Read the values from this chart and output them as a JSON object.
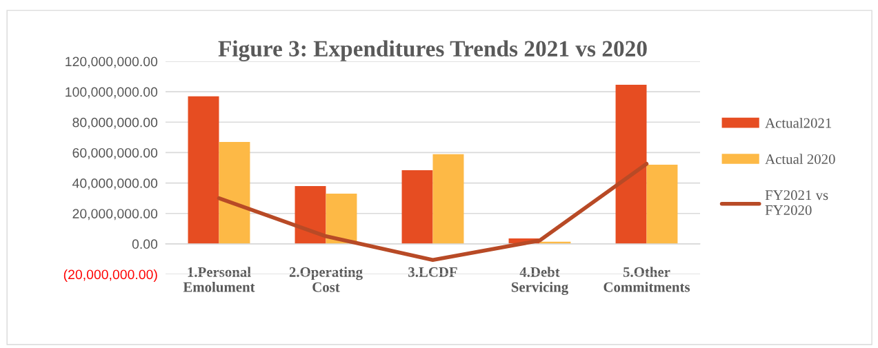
{
  "chart_data": {
    "type": "bar",
    "title": "Figure 3: Expenditures Trends 2021 vs 2020",
    "categories": [
      "1.Personal\nEmolument",
      "2.Operating\nCost",
      "3.LCDF",
      "4.Debt\nServicing",
      "5.Other\nCommitments"
    ],
    "series": [
      {
        "name": "Actual2021",
        "color": "#e64d22",
        "values": [
          97000000,
          38000000,
          48400000,
          3600000,
          104600000
        ]
      },
      {
        "name": "Actual 2020",
        "color": "#fdb946",
        "values": [
          67000000,
          33000000,
          59000000,
          1400000,
          52000000
        ]
      },
      {
        "name": "FY2021 vs FY2020",
        "type": "line",
        "color": "#b84a26",
        "values": [
          30000000,
          5000000,
          -10600000,
          2200000,
          52600000
        ]
      }
    ],
    "ylim": [
      -20000000,
      120000000
    ],
    "yticks": [
      {
        "value": -20000000,
        "label": "(20,000,000.00)"
      },
      {
        "value": 0,
        "label": "0.00"
      },
      {
        "value": 20000000,
        "label": "20,000,000.00"
      },
      {
        "value": 40000000,
        "label": "40,000,000.00"
      },
      {
        "value": 60000000,
        "label": "60,000,000.00"
      },
      {
        "value": 80000000,
        "label": "80,000,000.00"
      },
      {
        "value": 100000000,
        "label": "100,000,000.00"
      },
      {
        "value": 120000000,
        "label": "120,000,000.00"
      }
    ],
    "grid": "y",
    "legend": "right",
    "marker": "none",
    "line_style": "solid"
  }
}
